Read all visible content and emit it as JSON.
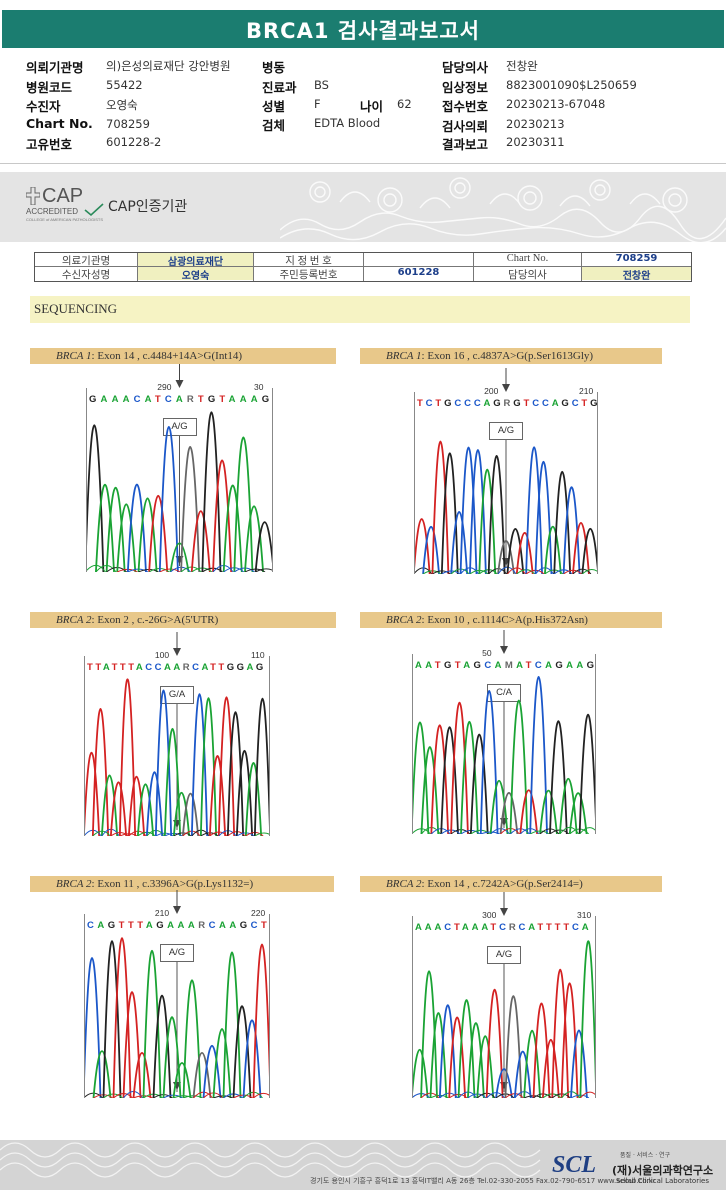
{
  "header": {
    "title": "BRCA1 검사결과보고서"
  },
  "patient_info": {
    "hospital_label": "의뢰기관명",
    "hospital_value": "의)은성의료재단 강안병원",
    "code_label": "병원코드",
    "code_value": "55422",
    "patient_label": "수진자",
    "patient_value": "오영숙",
    "chart_label": "Chart No.",
    "chart_value": "708259",
    "unique_label": "고유번호",
    "unique_value": "601228-2",
    "ward_label": "병동",
    "ward_value": "",
    "dept_label": "진료과",
    "dept_value": "BS",
    "sex_label": "성별",
    "sex_value": "F",
    "age_label": "나이",
    "age_value": "62",
    "specimen_label": "검체",
    "specimen_value": "EDTA Blood",
    "doctor_label": "담당의사",
    "doctor_value": "전창완",
    "clinical_label": "임상정보",
    "clinical_value": "8823001090$L250659",
    "receipt_label": "접수번호",
    "receipt_value": "20230213-67048",
    "request_label": "검사의뢰",
    "request_value": "20230213",
    "report_label": "결과보고",
    "report_value": "20230311"
  },
  "cap": {
    "logo_word": "CAP",
    "logo_accredited": "ACCREDITED",
    "logo_college": "COLLEGE of AMERICAN PATHOLOGISTS",
    "text": "CAP인증기관"
  },
  "sub_table": {
    "inst_label": "의료기관명",
    "inst_value": "삼광의료재단",
    "designation_label": "지 정 번 호",
    "designation_value": "",
    "chart_label": "Chart No.",
    "chart_value": "708259",
    "recipient_label": "수신자성명",
    "recipient_value": "오영숙",
    "resident_label": "주민등록번호",
    "resident_value": "601228",
    "doctor_label": "담당의사",
    "doctor_value": "전창완"
  },
  "sequencing": {
    "title": "SEQUENCING",
    "panels": [
      {
        "gene": "BRCA 1",
        "desc": ": Exon 14 , c.4484+14A>G(Int14)",
        "seq": "GAAACATCARTGTAAAG",
        "pos_left": "290",
        "pos_right": "30",
        "call": "A/G"
      },
      {
        "gene": "BRCA 1",
        "desc": ": Exon 16 , c.4837A>G(p.Ser1613Gly)",
        "seq": "TCTGCCCAGRGTCCAGCTG",
        "pos_left": "200",
        "pos_right": "210",
        "call": "A/G"
      },
      {
        "gene": "BRCA 2",
        "desc": ": Exon 2 , c.-26G>A(5'UTR)",
        "seq": "TTATTTACCAARCATTGGAG",
        "pos_left": "100",
        "pos_right": "110",
        "call": "G/A"
      },
      {
        "gene": "BRCA 2",
        "desc": ": Exon 10 , c.1114C>A(p.His372Asn)",
        "seq": "AATGTAGCAMATCAGAAG",
        "pos_left": "50",
        "pos_right": "",
        "call": "C/A"
      },
      {
        "gene": "BRCA 2",
        "desc": ": Exon 11 , c.3396A>G(p.Lys1132=)",
        "seq": "CAGTTTAGAAARCAAGCT",
        "pos_left": "210",
        "pos_right": "220",
        "call": "A/G"
      },
      {
        "gene": "BRCA 2",
        "desc": ": Exon 14 , c.7242A>G(p.Ser2414=)",
        "seq": "AAACTAAATCRCATTTTCA",
        "pos_left": "300",
        "pos_right": "310",
        "call": "A/G"
      }
    ]
  },
  "footer": {
    "address": "경기도 용인시 기흥구 흥덕1로 13 흥덕IT밸리 A동 26층  Tel.02-330-2055  Fax.02-790-6517  www.scllab.co.kr",
    "logo": "SCL",
    "tagline": "품질 · 서비스 · 연구",
    "org_name": "(재)서울의과학연구소",
    "org_eng": "Seoul Clinical Laboratories"
  },
  "colors": {
    "title_band": "#1b7d70",
    "A": "#1aa334",
    "C": "#1b57c9",
    "G": "#222222",
    "T": "#d42222"
  }
}
